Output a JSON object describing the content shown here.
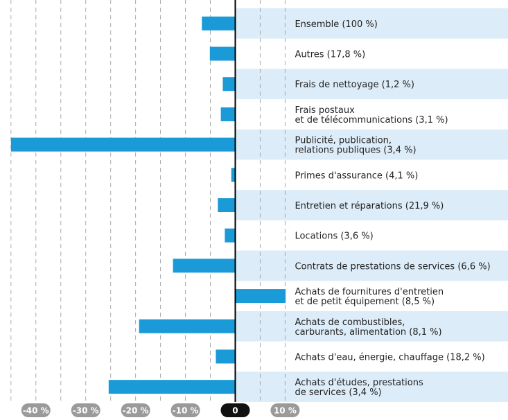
{
  "chart_data": {
    "type": "barh",
    "categories": [
      "Ensemble (100 %)",
      "Autres (17,8 %)",
      "Frais de nettoyage (1,2 %)",
      "Frais postaux\net de télécommunications (3,1 %)",
      "Publicité, publication,\nrelations publiques (3,4 %)",
      "Primes d'assurance (4,1 %)",
      "Entretien et réparations (21,9 %)",
      "Locations (3,6 %)",
      "Contrats de prestations de services (6,6 %)",
      "Achats de fournitures d'entretien\net de petit équipement (8,5 %)",
      "Achats de combustibles,\ncarburants, alimentation (8,1 %)",
      "Achats d'eau, énergie, chauffage (18,2 %)",
      "Achats d'études, prestations\nde services (3,4 %)"
    ],
    "values": [
      -6.7,
      -5.1,
      -2.5,
      -2.9,
      -45,
      -0.8,
      -3.5,
      -2.1,
      -12.5,
      10.1,
      -19.3,
      -3.9,
      -25.4
    ],
    "color": "#1a9ad6",
    "xlim": [
      -47.2,
      10.5
    ],
    "xticks": [
      {
        "value": -40,
        "label": "-40 %"
      },
      {
        "value": -30,
        "label": "-30 %"
      },
      {
        "value": -20,
        "label": "-20 %"
      },
      {
        "value": -10,
        "label": "-10 %"
      },
      0,
      {
        "value": 10,
        "label": "10 %"
      }
    ],
    "grid": true
  }
}
